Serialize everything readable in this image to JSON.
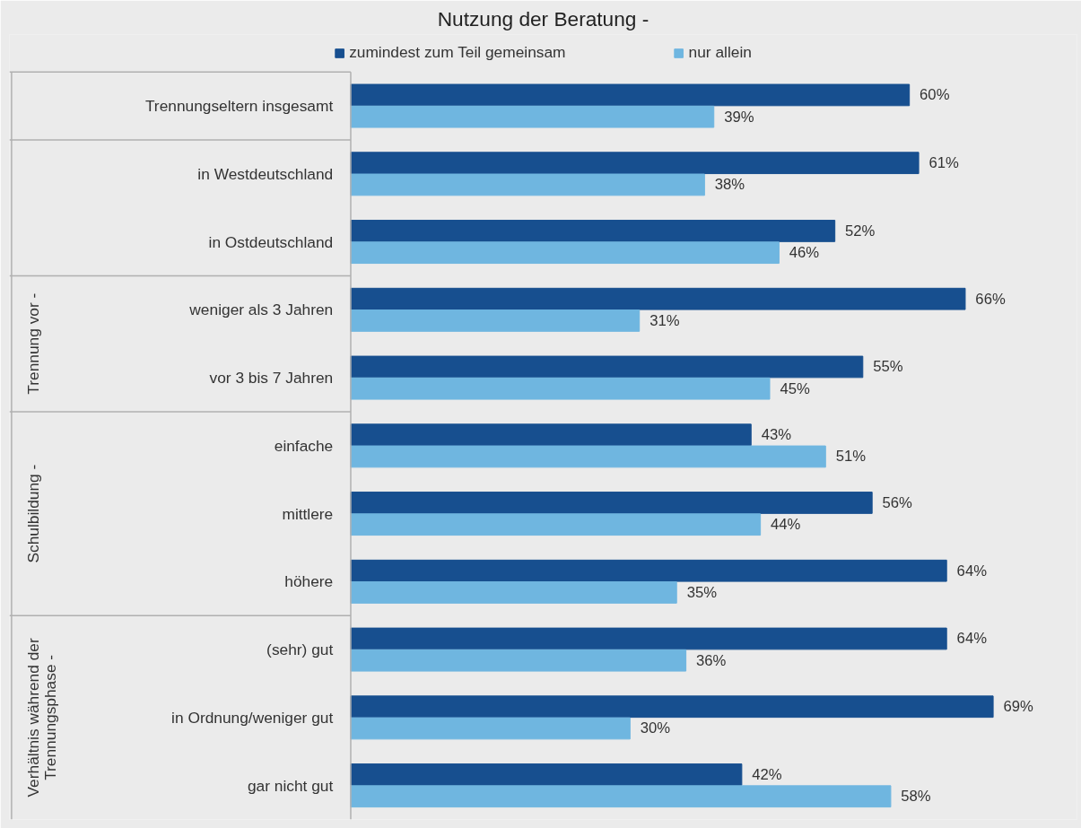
{
  "chart_data": {
    "type": "bar",
    "orientation": "horizontal",
    "title": "Nutzung der Beratung -",
    "categories": [
      "Trennungseltern insgesamt",
      "in Westdeutschland",
      "in Ostdeutschland",
      "weniger als 3 Jahren",
      "vor 3 bis 7 Jahren",
      "einfache",
      "mittlere",
      "höhere",
      "(sehr) gut",
      "in Ordnung/weniger gut",
      "gar nicht gut"
    ],
    "series": [
      {
        "name": "zumindest zum Teil gemeinsam",
        "color": "#174f8f",
        "values": [
          60,
          61,
          52,
          66,
          55,
          43,
          56,
          64,
          64,
          69,
          42
        ],
        "value_labels": [
          "60%",
          "61%",
          "52%",
          "66%",
          "55%",
          "43%",
          "56%",
          "64%",
          "64%",
          "69%",
          "42%"
        ]
      },
      {
        "name": "nur allein",
        "color": "#6fb6e0",
        "values": [
          39,
          38,
          46,
          31,
          45,
          51,
          44,
          35,
          36,
          30,
          58
        ],
        "value_labels": [
          "39%",
          "38%",
          "46%",
          "31%",
          "45%",
          "51%",
          "44%",
          "35%",
          "36%",
          "30%",
          "58%"
        ]
      }
    ],
    "annotations": [
      "Trennung vor -",
      "Schulbildung -",
      "Verhältnis während der\nTrennungsphase -"
    ],
    "xlim": [
      0,
      78
    ],
    "tick_labels": "y",
    "grid": false,
    "legend": "top"
  }
}
